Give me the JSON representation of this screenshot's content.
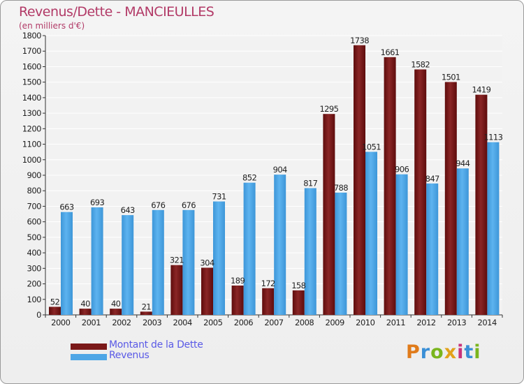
{
  "title": "Revenus/Dette - MANCIEULLES",
  "subtitle": "(en milliers d'€)",
  "colors": {
    "dette": "#7a1818",
    "revenus": "#4ea6e6",
    "title": "#b23a67",
    "legend_text": "#5a5ae6"
  },
  "legend": {
    "dette_label": "Montant de la Dette",
    "revenus_label": "Revenus"
  },
  "logo": {
    "text": "Proxiti"
  },
  "chart_data": {
    "type": "bar",
    "categories": [
      "2000",
      "2001",
      "2002",
      "2003",
      "2004",
      "2005",
      "2006",
      "2007",
      "2008",
      "2009",
      "2010",
      "2011",
      "2012",
      "2013",
      "2014"
    ],
    "series": [
      {
        "name": "Montant de la Dette",
        "values": [
          52,
          40,
          40,
          21,
          321,
          304,
          189,
          172,
          158,
          1295,
          1738,
          1661,
          1582,
          1501,
          1419
        ]
      },
      {
        "name": "Revenus",
        "values": [
          663,
          693,
          643,
          676,
          676,
          731,
          852,
          904,
          817,
          788,
          1051,
          906,
          847,
          944,
          1113
        ]
      }
    ],
    "ylim": [
      0,
      1800
    ],
    "yticks": [
      0,
      100,
      200,
      300,
      400,
      500,
      600,
      700,
      800,
      900,
      1000,
      1100,
      1200,
      1300,
      1400,
      1500,
      1600,
      1700,
      1800
    ],
    "grid": true,
    "legend_position": "bottom-left"
  }
}
